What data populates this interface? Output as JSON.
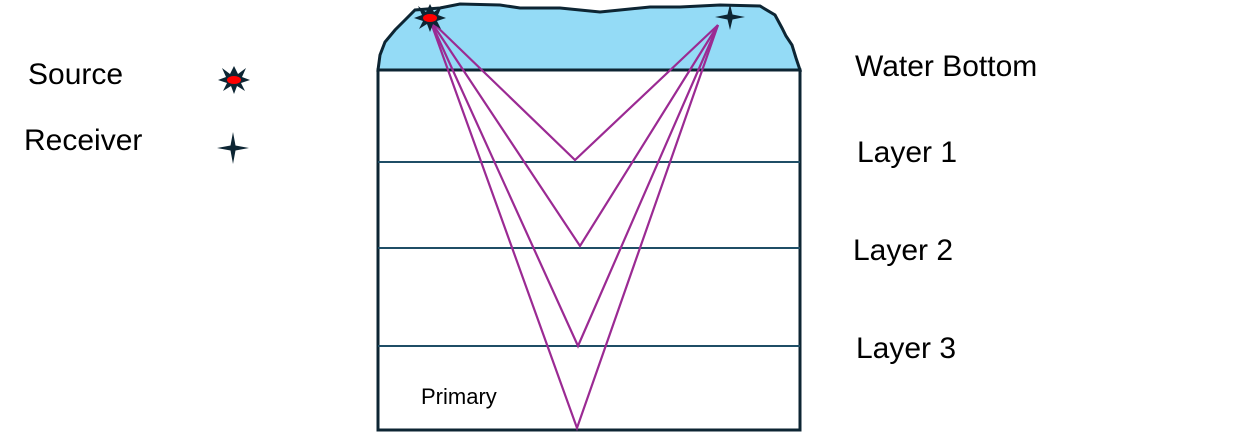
{
  "legend": {
    "source_label": "Source",
    "receiver_label": "Receiver",
    "source_icon": "explosion-star-icon",
    "receiver_icon": "four-point-star-icon"
  },
  "layers": {
    "water_bottom": "Water Bottom",
    "layer1": "Layer 1",
    "layer2": "Layer 2",
    "layer3": "Layer 3"
  },
  "annotation": "Primary",
  "colors": {
    "water": "#94dbf6",
    "outline": "#0d2533",
    "layer_line": "#1f4e66",
    "ray": "#9b2a93",
    "source_core": "#ff0000"
  }
}
